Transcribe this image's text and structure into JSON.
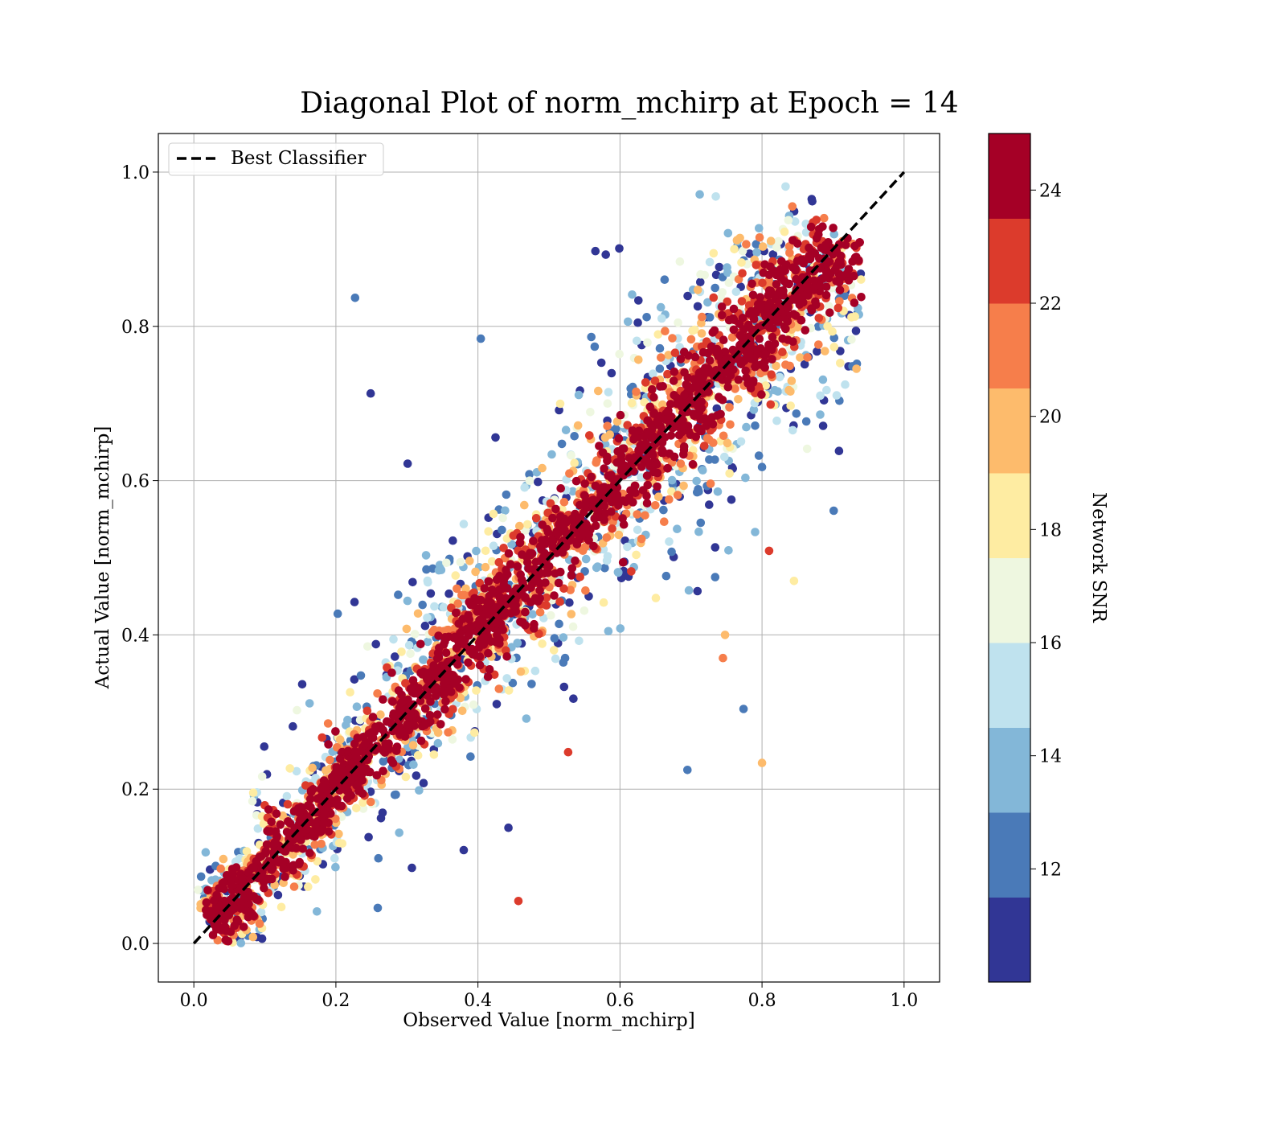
{
  "chart_data": {
    "type": "scatter",
    "title": "Diagonal Plot of norm_mchirp at Epoch = 14",
    "xlabel": "Observed Value [norm_mchirp]",
    "ylabel": "Actual Value [norm_mchirp]",
    "xlim": [
      -0.05,
      1.05
    ],
    "ylim": [
      -0.05,
      1.05
    ],
    "xticks": [
      "0.0",
      "0.2",
      "0.4",
      "0.6",
      "0.8",
      "1.0"
    ],
    "yticks": [
      "0.0",
      "0.2",
      "0.4",
      "0.6",
      "0.8",
      "1.0"
    ],
    "grid": true,
    "legend": {
      "placement": "top-left",
      "entries": [
        {
          "label": "Best Classifier",
          "style": "dashed",
          "color": "#000000"
        }
      ]
    },
    "reference_line": {
      "label": "Best Classifier",
      "x": [
        0.0,
        1.0
      ],
      "y": [
        0.0,
        1.0
      ],
      "color": "#000000",
      "style": "dashed"
    },
    "colorbar": {
      "label": "Network SNR",
      "range": [
        10,
        25
      ],
      "ticks": [
        "12",
        "14",
        "16",
        "18",
        "20",
        "22",
        "24"
      ],
      "tick_values": [
        12,
        14,
        16,
        18,
        20,
        22,
        24
      ],
      "bins": [
        {
          "from": 10,
          "to": 11.5,
          "color": "#313695"
        },
        {
          "from": 11.5,
          "to": 13,
          "color": "#4a7ab8"
        },
        {
          "from": 13,
          "to": 14.5,
          "color": "#83b7d8"
        },
        {
          "from": 14.5,
          "to": 16,
          "color": "#bfe2ee"
        },
        {
          "from": 16,
          "to": 17.5,
          "color": "#eef7e0"
        },
        {
          "from": 17.5,
          "to": 19,
          "color": "#feeca2"
        },
        {
          "from": 19,
          "to": 20.5,
          "color": "#fdbb6c"
        },
        {
          "from": 20.5,
          "to": 22,
          "color": "#f67e4b"
        },
        {
          "from": 22,
          "to": 23.5,
          "color": "#dc3b2c"
        },
        {
          "from": 23.5,
          "to": 25,
          "color": "#a50026"
        }
      ]
    },
    "series": [
      {
        "color_by": "Network SNR",
        "points": [
          [
            0.227,
            0.837,
            12
          ],
          [
            0.404,
            0.784,
            12
          ],
          [
            0.249,
            0.713,
            11
          ],
          [
            0.301,
            0.622,
            11
          ],
          [
            0.457,
            0.055,
            23
          ],
          [
            0.259,
            0.046,
            12
          ],
          [
            0.901,
            0.561,
            12
          ],
          [
            0.8,
            0.234,
            20
          ],
          [
            0.845,
            0.47,
            18
          ],
          [
            0.774,
            0.304,
            12
          ],
          [
            0.81,
            0.509,
            23
          ],
          [
            0.58,
            0.893,
            11
          ],
          [
            0.599,
            0.901,
            11
          ],
          [
            0.87,
            0.965,
            11
          ],
          [
            0.695,
            0.225,
            12
          ],
          [
            0.38,
            0.121,
            11
          ],
          [
            0.443,
            0.15,
            11
          ],
          [
            0.307,
            0.098,
            11
          ],
          [
            0.527,
            0.248,
            23
          ],
          [
            0.745,
            0.37,
            21
          ],
          [
            0.748,
            0.4,
            20
          ]
        ]
      }
    ]
  }
}
